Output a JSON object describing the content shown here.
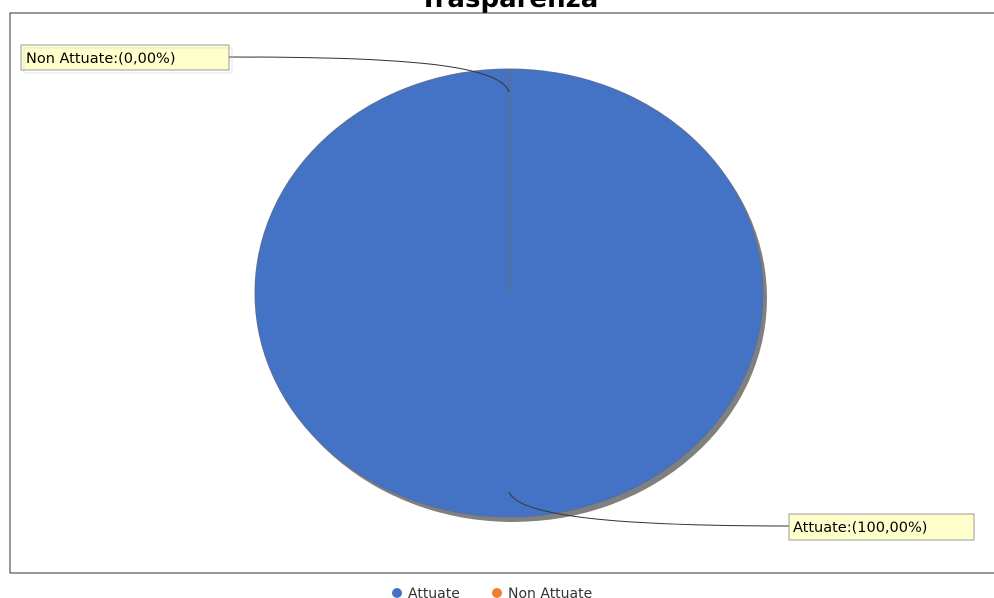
{
  "chart_data": {
    "type": "pie",
    "title": "Trasparenza",
    "slices": [
      {
        "label": "Attuate",
        "value": 100.0,
        "callout": "Attuate:(100,00%)",
        "color": "#4472C4"
      },
      {
        "label": "Non Attuate",
        "value": 0.0,
        "callout": "Non Attuate:(0,00%)",
        "color": "#ED7D31"
      }
    ],
    "legend": {
      "position": "bottom",
      "entries": [
        "Attuate",
        "Non Attuate"
      ]
    }
  },
  "colors": {
    "callout_background": "#FFFFCC",
    "shadow": "#808080",
    "plot_border": "#333333"
  }
}
